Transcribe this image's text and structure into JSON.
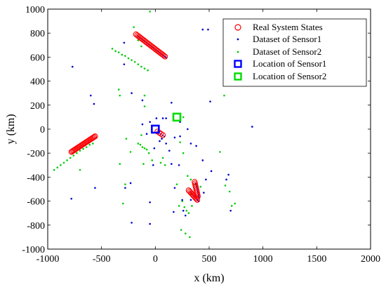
{
  "chart_data": {
    "type": "scatter",
    "title": "",
    "xlabel": "x (km)",
    "ylabel": "y (km)",
    "xlim": [
      -1000,
      2000
    ],
    "ylim": [
      -1000,
      1000
    ],
    "x_ticks": [
      -1000,
      -500,
      0,
      500,
      1000,
      1500,
      2000
    ],
    "y_ticks": [
      -1000,
      -800,
      -600,
      -400,
      -200,
      0,
      200,
      400,
      600,
      800,
      1000
    ],
    "grid": false,
    "legend_position": "top-right",
    "legend": [
      "Real System States",
      "Dataset of Sensor1",
      "Dataset of Sensor2",
      "Location of Sensor1",
      "Location of Sensor2"
    ],
    "colors": {
      "real_states": "#ff0000",
      "sensor1": "#0000cc",
      "sensor2": "#00cc00",
      "loc1": "#0000ff",
      "loc2": "#00dd00"
    },
    "tracks": [
      {
        "start": [
          -180,
          790
        ],
        "end": [
          90,
          605
        ],
        "count": 26
      },
      {
        "start": [
          -780,
          -190
        ],
        "end": [
          -560,
          -60
        ],
        "count": 26
      },
      {
        "start": [
          310,
          -510
        ],
        "end": [
          390,
          -590
        ],
        "count": 10
      },
      {
        "start": [
          365,
          -440
        ],
        "end": [
          395,
          -560
        ],
        "count": 10
      },
      {
        "start": [
          20,
          -20
        ],
        "end": [
          70,
          -50
        ],
        "count": 4
      }
    ],
    "sensor1_points": [
      [
        -770,
        520
      ],
      [
        -600,
        280
      ],
      [
        -570,
        210
      ],
      [
        -560,
        -490
      ],
      [
        -780,
        -580
      ],
      [
        -290,
        720
      ],
      [
        -290,
        540
      ],
      [
        -220,
        300
      ],
      [
        -120,
        240
      ],
      [
        -120,
        40
      ],
      [
        -50,
        60
      ],
      [
        10,
        90
      ],
      [
        70,
        90
      ],
      [
        100,
        90
      ],
      [
        -80,
        -40
      ],
      [
        -20,
        -30
      ],
      [
        40,
        -100
      ],
      [
        60,
        -80
      ],
      [
        100,
        -120
      ],
      [
        130,
        -180
      ],
      [
        -10,
        -160
      ],
      [
        -20,
        -300
      ],
      [
        -280,
        -490
      ],
      [
        -230,
        -450
      ],
      [
        -50,
        -610
      ],
      [
        -220,
        -780
      ],
      [
        -50,
        -790
      ],
      [
        150,
        -290
      ],
      [
        180,
        -70
      ],
      [
        220,
        -300
      ],
      [
        230,
        60
      ],
      [
        230,
        -60
      ],
      [
        300,
        0
      ],
      [
        330,
        -120
      ],
      [
        380,
        -140
      ],
      [
        440,
        -260
      ],
      [
        520,
        -350
      ],
      [
        450,
        -530
      ],
      [
        470,
        -420
      ],
      [
        330,
        -590
      ],
      [
        250,
        -590
      ],
      [
        180,
        -490
      ],
      [
        260,
        -680
      ],
      [
        280,
        -720
      ],
      [
        170,
        -690
      ],
      [
        440,
        830
      ],
      [
        490,
        830
      ],
      [
        510,
        230
      ],
      [
        680,
        -380
      ],
      [
        660,
        -420
      ],
      [
        700,
        -680
      ],
      [
        900,
        20
      ],
      [
        150,
        220
      ]
    ],
    "sensor2_points": [
      [
        -50,
        980
      ],
      [
        -160,
        740
      ],
      [
        -130,
        690
      ],
      [
        -400,
        670
      ],
      [
        -370,
        650
      ],
      [
        -340,
        640
      ],
      [
        -310,
        620
      ],
      [
        -280,
        610
      ],
      [
        -250,
        590
      ],
      [
        -220,
        575
      ],
      [
        -190,
        560
      ],
      [
        -160,
        540
      ],
      [
        -130,
        520
      ],
      [
        -100,
        505
      ],
      [
        -70,
        490
      ],
      [
        -200,
        850
      ],
      [
        -340,
        330
      ],
      [
        -330,
        280
      ],
      [
        -100,
        280
      ],
      [
        -100,
        190
      ],
      [
        -160,
        -120
      ],
      [
        -140,
        -130
      ],
      [
        -120,
        -150
      ],
      [
        -100,
        -160
      ],
      [
        -80,
        -170
      ],
      [
        -60,
        -200
      ],
      [
        -110,
        -290
      ],
      [
        -130,
        -50
      ],
      [
        -270,
        -80
      ],
      [
        -230,
        -190
      ],
      [
        -940,
        -340
      ],
      [
        -910,
        -320
      ],
      [
        -880,
        -300
      ],
      [
        -850,
        -280
      ],
      [
        -820,
        -260
      ],
      [
        -790,
        -240
      ],
      [
        -760,
        -220
      ],
      [
        -730,
        -200
      ],
      [
        -700,
        -180
      ],
      [
        -670,
        -165
      ],
      [
        -640,
        -150
      ],
      [
        -610,
        -130
      ],
      [
        -700,
        -340
      ],
      [
        -580,
        -120
      ],
      [
        -330,
        -290
      ],
      [
        -280,
        -460
      ],
      [
        -300,
        -620
      ],
      [
        -30,
        -260
      ],
      [
        50,
        -280
      ],
      [
        70,
        -240
      ],
      [
        90,
        -300
      ],
      [
        230,
        -110
      ],
      [
        260,
        -200
      ],
      [
        300,
        -390
      ],
      [
        330,
        -420
      ],
      [
        200,
        -460
      ],
      [
        220,
        -640
      ],
      [
        250,
        -600
      ],
      [
        270,
        -650
      ],
      [
        290,
        -680
      ],
      [
        310,
        -700
      ],
      [
        330,
        -540
      ],
      [
        340,
        -640
      ],
      [
        360,
        -560
      ],
      [
        240,
        -840
      ],
      [
        280,
        -870
      ],
      [
        320,
        -900
      ],
      [
        370,
        -460
      ],
      [
        420,
        -480
      ],
      [
        600,
        -190
      ],
      [
        640,
        280
      ],
      [
        650,
        -470
      ],
      [
        710,
        -640
      ],
      [
        740,
        -620
      ],
      [
        690,
        -520
      ],
      [
        260,
        100
      ]
    ],
    "sensor1_location": [
      0,
      0
    ],
    "sensor2_location": [
      200,
      100
    ]
  }
}
